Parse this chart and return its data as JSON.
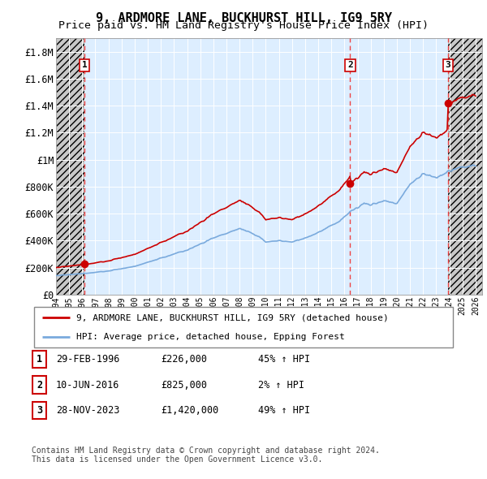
{
  "title": "9, ARDMORE LANE, BUCKHURST HILL, IG9 5RY",
  "subtitle": "Price paid vs. HM Land Registry's House Price Index (HPI)",
  "ylim": [
    0,
    1900000
  ],
  "yticks": [
    0,
    200000,
    400000,
    600000,
    800000,
    1000000,
    1200000,
    1400000,
    1600000,
    1800000
  ],
  "ytick_labels": [
    "£0",
    "£200K",
    "£400K",
    "£600K",
    "£800K",
    "£1M",
    "£1.2M",
    "£1.4M",
    "£1.6M",
    "£1.8M"
  ],
  "xlim_start": 1994.0,
  "xlim_end": 2026.5,
  "sales": [
    {
      "year": 1996.17,
      "price": 226000,
      "label": "1"
    },
    {
      "year": 2016.44,
      "price": 825000,
      "label": "2"
    },
    {
      "year": 2023.91,
      "price": 1420000,
      "label": "3"
    }
  ],
  "legend_entries": [
    "9, ARDMORE LANE, BUCKHURST HILL, IG9 5RY (detached house)",
    "HPI: Average price, detached house, Epping Forest"
  ],
  "table_data": [
    [
      "1",
      "29-FEB-1996",
      "£226,000",
      "45% ↑ HPI"
    ],
    [
      "2",
      "10-JUN-2016",
      "£825,000",
      "2% ↑ HPI"
    ],
    [
      "3",
      "28-NOV-2023",
      "£1,420,000",
      "49% ↑ HPI"
    ]
  ],
  "footer": "Contains HM Land Registry data © Crown copyright and database right 2024.\nThis data is licensed under the Open Government Licence v3.0.",
  "hpi_color": "#7aaadd",
  "sales_color": "#cc0000",
  "vline_color": "#ee4444",
  "background_plot": "#ddeeff",
  "grid_color": "#ffffff",
  "title_fontsize": 11,
  "subtitle_fontsize": 9.5
}
